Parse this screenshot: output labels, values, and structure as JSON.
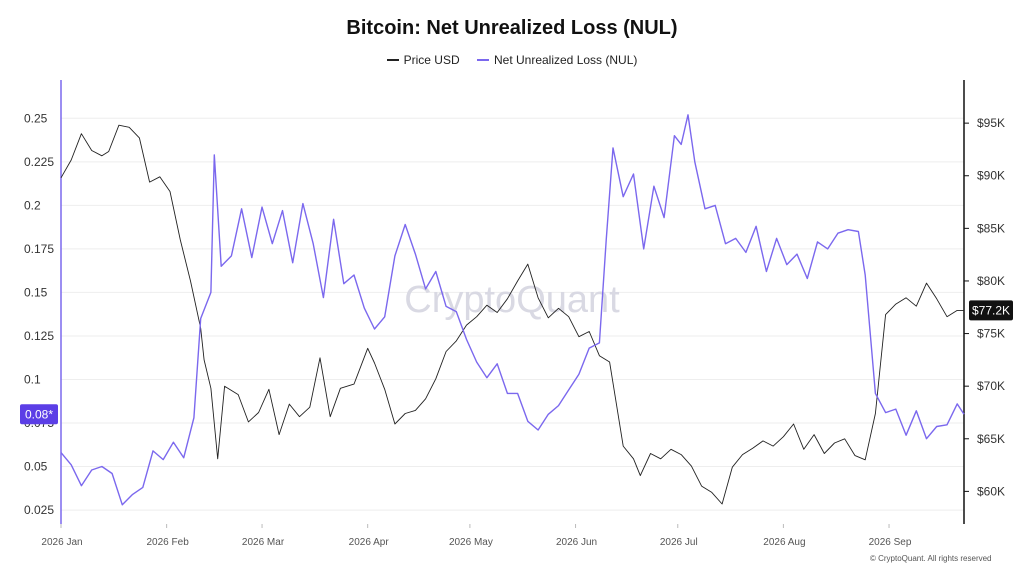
{
  "title": "Bitcoin: Net Unrealized Loss (NUL)",
  "watermark": "CryptoQuant",
  "credit": "© CryptoQuant. All rights reserved",
  "colors": {
    "price": "#222222",
    "nul": "#7b68ee",
    "nul_badge": "#5b3ee6",
    "price_badge": "#111111",
    "grid": "#eeeeee"
  },
  "chart_data": {
    "type": "line",
    "title": "Bitcoin: Net Unrealized Loss (NUL)",
    "legend": {
      "placement": "top-center"
    },
    "grid": true,
    "x_axis": {
      "ticks": [
        "2026 Jan",
        "2026 Feb",
        "2026 Mar",
        "2026 Apr",
        "2026 May",
        "2026 Jun",
        "2026 Jul",
        "2026 Aug",
        "2026 Sep"
      ],
      "range": [
        "2026-01-01",
        "2026-09-23"
      ]
    },
    "y_left": {
      "range": [
        0.017,
        0.272
      ],
      "ticks": [
        "0.25",
        "0.225",
        "0.2",
        "0.175",
        "0.15",
        "0.125",
        "0.1",
        "0.075",
        "0.05",
        "0.025"
      ],
      "current_label": "0.08*",
      "current_value": 0.08
    },
    "y_right": {
      "range": [
        56900,
        99100
      ],
      "ticks": [
        "$95K",
        "$90K",
        "$85K",
        "$80K",
        "$75K",
        "$70K",
        "$65K",
        "$60K"
      ],
      "current_label": "$77.2K",
      "current_value": 77200
    },
    "series": [
      {
        "name": "Price USD",
        "axis": "right",
        "key": "price",
        "points": [
          [
            "2026-01-01",
            89800
          ],
          [
            "2026-01-04",
            91500
          ],
          [
            "2026-01-07",
            94000
          ],
          [
            "2026-01-10",
            92400
          ],
          [
            "2026-01-13",
            91900
          ],
          [
            "2026-01-15",
            92300
          ],
          [
            "2026-01-18",
            94800
          ],
          [
            "2026-01-21",
            94600
          ],
          [
            "2026-01-24",
            93600
          ],
          [
            "2026-01-27",
            89400
          ],
          [
            "2026-01-30",
            89900
          ],
          [
            "2026-02-02",
            88500
          ],
          [
            "2026-02-05",
            83900
          ],
          [
            "2026-02-08",
            80000
          ],
          [
            "2026-02-11",
            75500
          ],
          [
            "2026-02-12",
            72500
          ],
          [
            "2026-02-14",
            69800
          ],
          [
            "2026-02-16",
            63100
          ],
          [
            "2026-02-18",
            70000
          ],
          [
            "2026-02-22",
            69200
          ],
          [
            "2026-02-25",
            66600
          ],
          [
            "2026-02-28",
            67500
          ],
          [
            "2026-03-03",
            69700
          ],
          [
            "2026-03-06",
            65400
          ],
          [
            "2026-03-09",
            68300
          ],
          [
            "2026-03-12",
            67100
          ],
          [
            "2026-03-15",
            68000
          ],
          [
            "2026-03-18",
            72700
          ],
          [
            "2026-03-21",
            67100
          ],
          [
            "2026-03-24",
            69800
          ],
          [
            "2026-03-28",
            70200
          ],
          [
            "2026-04-01",
            73600
          ],
          [
            "2026-04-03",
            72200
          ],
          [
            "2026-04-06",
            69700
          ],
          [
            "2026-04-09",
            66400
          ],
          [
            "2026-04-12",
            67400
          ],
          [
            "2026-04-15",
            67700
          ],
          [
            "2026-04-18",
            68800
          ],
          [
            "2026-04-21",
            70700
          ],
          [
            "2026-04-24",
            73300
          ],
          [
            "2026-04-27",
            74300
          ],
          [
            "2026-04-30",
            75800
          ],
          [
            "2026-05-03",
            76600
          ],
          [
            "2026-05-06",
            77700
          ],
          [
            "2026-05-09",
            77000
          ],
          [
            "2026-05-12",
            78300
          ],
          [
            "2026-05-15",
            80000
          ],
          [
            "2026-05-18",
            81600
          ],
          [
            "2026-05-21",
            78400
          ],
          [
            "2026-05-24",
            76500
          ],
          [
            "2026-05-27",
            77400
          ],
          [
            "2026-05-30",
            76600
          ],
          [
            "2026-06-02",
            74700
          ],
          [
            "2026-06-05",
            75200
          ],
          [
            "2026-06-08",
            72900
          ],
          [
            "2026-06-11",
            72300
          ],
          [
            "2026-06-15",
            64300
          ],
          [
            "2026-06-18",
            63100
          ],
          [
            "2026-06-20",
            61500
          ],
          [
            "2026-06-23",
            63600
          ],
          [
            "2026-06-26",
            63100
          ],
          [
            "2026-06-29",
            64000
          ],
          [
            "2026-07-02",
            63500
          ],
          [
            "2026-07-05",
            62400
          ],
          [
            "2026-07-08",
            60500
          ],
          [
            "2026-07-11",
            59900
          ],
          [
            "2026-07-14",
            58800
          ],
          [
            "2026-07-17",
            62300
          ],
          [
            "2026-07-20",
            63500
          ],
          [
            "2026-07-23",
            64100
          ],
          [
            "2026-07-26",
            64800
          ],
          [
            "2026-07-29",
            64300
          ],
          [
            "2026-08-01",
            65200
          ],
          [
            "2026-08-04",
            66400
          ],
          [
            "2026-08-07",
            64000
          ],
          [
            "2026-08-10",
            65400
          ],
          [
            "2026-08-13",
            63600
          ],
          [
            "2026-08-16",
            64600
          ],
          [
            "2026-08-19",
            65000
          ],
          [
            "2026-08-22",
            63400
          ],
          [
            "2026-08-25",
            63000
          ],
          [
            "2026-08-28",
            67400
          ],
          [
            "2026-08-31",
            76800
          ],
          [
            "2026-09-03",
            77800
          ],
          [
            "2026-09-06",
            78400
          ],
          [
            "2026-09-09",
            77600
          ],
          [
            "2026-09-12",
            79800
          ],
          [
            "2026-09-15",
            78300
          ],
          [
            "2026-09-18",
            76600
          ],
          [
            "2026-09-21",
            77200
          ],
          [
            "2026-09-23",
            77200
          ]
        ]
      },
      {
        "name": "Net Unrealized Loss (NUL)",
        "axis": "left",
        "key": "nul",
        "points": [
          [
            "2026-01-01",
            0.058
          ],
          [
            "2026-01-04",
            0.051
          ],
          [
            "2026-01-07",
            0.039
          ],
          [
            "2026-01-10",
            0.048
          ],
          [
            "2026-01-13",
            0.05
          ],
          [
            "2026-01-16",
            0.046
          ],
          [
            "2026-01-19",
            0.028
          ],
          [
            "2026-01-22",
            0.034
          ],
          [
            "2026-01-25",
            0.038
          ],
          [
            "2026-01-28",
            0.059
          ],
          [
            "2026-01-31",
            0.054
          ],
          [
            "2026-02-03",
            0.064
          ],
          [
            "2026-02-06",
            0.055
          ],
          [
            "2026-02-09",
            0.078
          ],
          [
            "2026-02-11",
            0.135
          ],
          [
            "2026-02-14",
            0.15
          ],
          [
            "2026-02-15",
            0.229
          ],
          [
            "2026-02-17",
            0.165
          ],
          [
            "2026-02-20",
            0.171
          ],
          [
            "2026-02-23",
            0.198
          ],
          [
            "2026-02-26",
            0.17
          ],
          [
            "2026-03-01",
            0.199
          ],
          [
            "2026-03-04",
            0.178
          ],
          [
            "2026-03-07",
            0.197
          ],
          [
            "2026-03-10",
            0.167
          ],
          [
            "2026-03-13",
            0.201
          ],
          [
            "2026-03-16",
            0.178
          ],
          [
            "2026-03-19",
            0.147
          ],
          [
            "2026-03-22",
            0.192
          ],
          [
            "2026-03-25",
            0.155
          ],
          [
            "2026-03-28",
            0.16
          ],
          [
            "2026-03-31",
            0.141
          ],
          [
            "2026-04-03",
            0.129
          ],
          [
            "2026-04-06",
            0.136
          ],
          [
            "2026-04-09",
            0.171
          ],
          [
            "2026-04-12",
            0.189
          ],
          [
            "2026-04-15",
            0.172
          ],
          [
            "2026-04-18",
            0.152
          ],
          [
            "2026-04-21",
            0.162
          ],
          [
            "2026-04-24",
            0.142
          ],
          [
            "2026-04-27",
            0.139
          ],
          [
            "2026-04-30",
            0.123
          ],
          [
            "2026-05-03",
            0.11
          ],
          [
            "2026-05-06",
            0.101
          ],
          [
            "2026-05-09",
            0.109
          ],
          [
            "2026-05-12",
            0.092
          ],
          [
            "2026-05-15",
            0.092
          ],
          [
            "2026-05-18",
            0.076
          ],
          [
            "2026-05-21",
            0.071
          ],
          [
            "2026-05-24",
            0.08
          ],
          [
            "2026-05-27",
            0.085
          ],
          [
            "2026-05-30",
            0.094
          ],
          [
            "2026-06-02",
            0.103
          ],
          [
            "2026-06-05",
            0.118
          ],
          [
            "2026-06-08",
            0.121
          ],
          [
            "2026-06-10",
            0.18
          ],
          [
            "2026-06-12",
            0.233
          ],
          [
            "2026-06-15",
            0.205
          ],
          [
            "2026-06-18",
            0.218
          ],
          [
            "2026-06-21",
            0.175
          ],
          [
            "2026-06-24",
            0.211
          ],
          [
            "2026-06-27",
            0.193
          ],
          [
            "2026-06-30",
            0.24
          ],
          [
            "2026-07-02",
            0.235
          ],
          [
            "2026-07-04",
            0.252
          ],
          [
            "2026-07-06",
            0.225
          ],
          [
            "2026-07-09",
            0.198
          ],
          [
            "2026-07-12",
            0.2
          ],
          [
            "2026-07-15",
            0.178
          ],
          [
            "2026-07-18",
            0.181
          ],
          [
            "2026-07-21",
            0.173
          ],
          [
            "2026-07-24",
            0.188
          ],
          [
            "2026-07-27",
            0.162
          ],
          [
            "2026-07-30",
            0.181
          ],
          [
            "2026-08-02",
            0.166
          ],
          [
            "2026-08-05",
            0.172
          ],
          [
            "2026-08-08",
            0.158
          ],
          [
            "2026-08-11",
            0.179
          ],
          [
            "2026-08-14",
            0.175
          ],
          [
            "2026-08-17",
            0.184
          ],
          [
            "2026-08-20",
            0.186
          ],
          [
            "2026-08-23",
            0.185
          ],
          [
            "2026-08-25",
            0.16
          ],
          [
            "2026-08-28",
            0.092
          ],
          [
            "2026-08-31",
            0.081
          ],
          [
            "2026-09-03",
            0.083
          ],
          [
            "2026-09-06",
            0.068
          ],
          [
            "2026-09-09",
            0.082
          ],
          [
            "2026-09-12",
            0.066
          ],
          [
            "2026-09-15",
            0.073
          ],
          [
            "2026-09-18",
            0.074
          ],
          [
            "2026-09-21",
            0.086
          ],
          [
            "2026-09-23",
            0.08
          ]
        ]
      }
    ]
  }
}
